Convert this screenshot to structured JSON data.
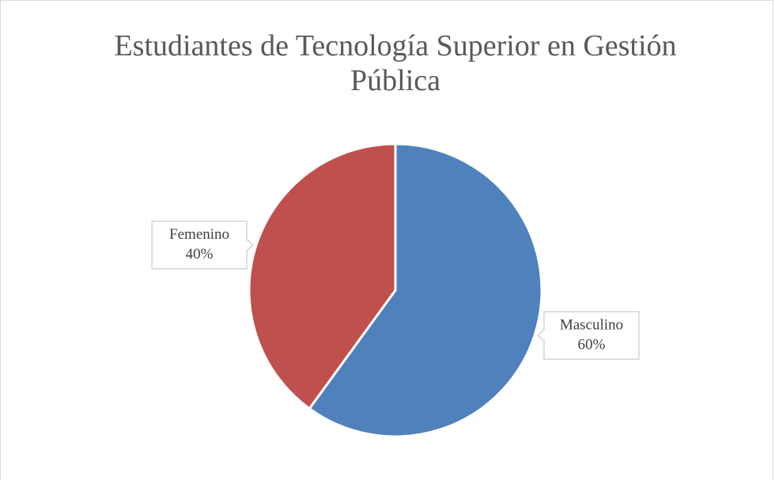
{
  "chart_data": {
    "type": "pie",
    "title": "Estudiantes de Tecnología Superior en Gestión Pública",
    "categories": [
      "Masculino",
      "Femenino"
    ],
    "values": [
      60,
      40
    ],
    "value_labels": [
      "60%",
      "40%"
    ],
    "colors": [
      "#4f81bd",
      "#c0504d"
    ]
  }
}
